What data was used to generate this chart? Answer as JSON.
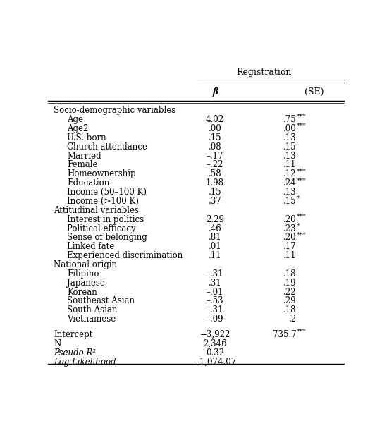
{
  "title": "Registration",
  "col_header_beta": "β",
  "col_header_se": "(SE)",
  "sections": [
    {
      "header": "Socio-demographic variables",
      "rows": [
        {
          "label": "Age",
          "indent": true,
          "beta": "4.02",
          "se": ".75",
          "stars": "***"
        },
        {
          "label": "Age2",
          "indent": true,
          "beta": ".00",
          "se": ".00",
          "stars": "***"
        },
        {
          "label": "U.S. born",
          "indent": true,
          "beta": ".15",
          "se": ".13",
          "stars": ""
        },
        {
          "label": "Church attendance",
          "indent": true,
          "beta": ".08",
          "se": ".15",
          "stars": ""
        },
        {
          "label": "Married",
          "indent": true,
          "beta": "–.17",
          "se": ".13",
          "stars": ""
        },
        {
          "label": "Female",
          "indent": true,
          "beta": "–.22",
          "se": ".11",
          "stars": ""
        },
        {
          "label": "Homeownership",
          "indent": true,
          "beta": ".58",
          "se": ".12",
          "stars": "***"
        },
        {
          "label": "Education",
          "indent": true,
          "beta": "1.98",
          "se": ".24",
          "stars": "***"
        },
        {
          "label": "Income (50–100 K)",
          "indent": true,
          "beta": ".15",
          "se": ".13",
          "stars": ""
        },
        {
          "label": "Income (>100 K)",
          "indent": true,
          "beta": ".37",
          "se": ".15",
          "stars": "*"
        }
      ]
    },
    {
      "header": "Attitudinal variables",
      "rows": [
        {
          "label": "Interest in politics",
          "indent": true,
          "beta": "2.29",
          "se": ".20",
          "stars": "***"
        },
        {
          "label": "Political efficacy",
          "indent": true,
          "beta": ".46",
          "se": ".23",
          "stars": "*"
        },
        {
          "label": "Sense of belonging",
          "indent": true,
          "beta": ".81",
          "se": ".20",
          "stars": "***"
        },
        {
          "label": "Linked fate",
          "indent": true,
          "beta": ".01",
          "se": ".17",
          "stars": ""
        },
        {
          "label": "Experienced discrimination",
          "indent": true,
          "beta": ".11",
          "se": ".11",
          "stars": ""
        }
      ]
    },
    {
      "header": "National origin",
      "rows": [
        {
          "label": "Filipino",
          "indent": true,
          "beta": "–.31",
          "se": ".18",
          "stars": ""
        },
        {
          "label": "Japanese",
          "indent": true,
          "beta": ".31",
          "se": ".19",
          "stars": ""
        },
        {
          "label": "Korean",
          "indent": true,
          "beta": "–.01",
          "se": ".22",
          "stars": ""
        },
        {
          "label": "Southeast Asian",
          "indent": true,
          "beta": "–.53",
          "se": ".29",
          "stars": ""
        },
        {
          "label": "South Asian",
          "indent": true,
          "beta": "–.31",
          "se": ".18",
          "stars": ""
        },
        {
          "label": "Vietnamese",
          "indent": true,
          "beta": "–.09",
          "se": ".2",
          "stars": ""
        }
      ]
    }
  ],
  "footer_rows": [
    {
      "label": "Intercept",
      "italic": false,
      "beta": "−3,922",
      "se": "735.7",
      "stars": "***"
    },
    {
      "label": "N",
      "italic": false,
      "beta": "2,346",
      "se": "",
      "stars": ""
    },
    {
      "label": "Pseudo R²",
      "italic": true,
      "beta": "0.32",
      "se": "",
      "stars": ""
    },
    {
      "label": "Log Likelihood",
      "italic": true,
      "beta": "−1,074.07",
      "se": "",
      "stars": ""
    }
  ],
  "font_size": 8.5,
  "fig_width": 5.42,
  "fig_height": 6.14,
  "dpi": 100
}
